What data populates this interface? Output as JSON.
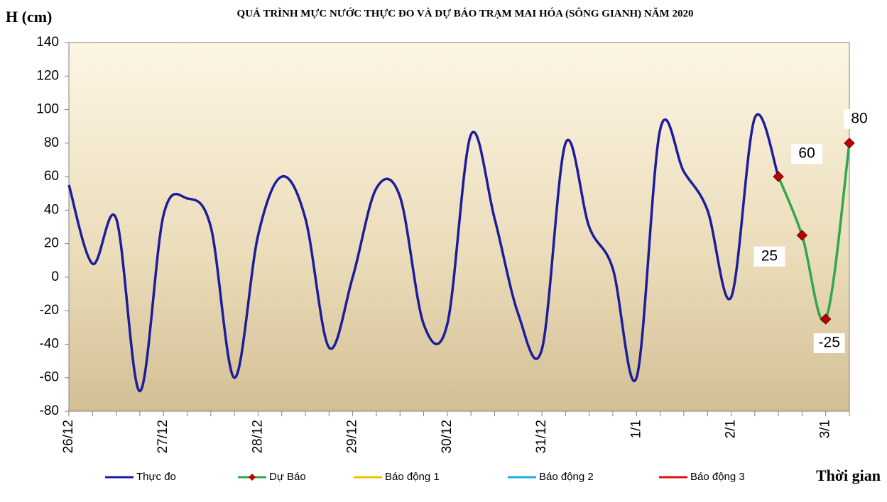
{
  "chart_data": {
    "type": "line",
    "title": "QUÁ TRÌNH MỰC NƯỚC THỰC ĐO VÀ DỰ BÁO TRẠM MAI HÓA (SÔNG GIANH) NĂM  2020",
    "y_label": "H (cm)",
    "x_label": "Thời gian",
    "categories": [
      "26/12",
      null,
      null,
      null,
      "27/12",
      null,
      null,
      null,
      "28/12",
      null,
      null,
      null,
      "29/12",
      null,
      null,
      null,
      "30/12",
      null,
      null,
      null,
      "31/12",
      null,
      null,
      null,
      "1/1",
      null,
      null,
      null,
      "2/1",
      null,
      null,
      null,
      "3/1",
      null
    ],
    "series": [
      {
        "name": "Thực đo",
        "color": "#1c1c9c",
        "values": [
          55,
          8,
          35,
          -68,
          37,
          47,
          30,
          -60,
          25,
          60,
          35,
          -42,
          0,
          53,
          48,
          -28,
          -28,
          85,
          35,
          -22,
          -43,
          80,
          30,
          5,
          -60,
          88,
          63,
          40,
          -12,
          95,
          60,
          null,
          null,
          null
        ]
      },
      {
        "name": "Dự Báo",
        "color": "#2ea84a",
        "marker_color": "#c00000",
        "values": [
          null,
          null,
          null,
          null,
          null,
          null,
          null,
          null,
          null,
          null,
          null,
          null,
          null,
          null,
          null,
          null,
          null,
          null,
          null,
          null,
          null,
          null,
          null,
          null,
          null,
          null,
          null,
          null,
          null,
          null,
          60,
          25,
          -25,
          80
        ]
      },
      {
        "name": "Báo động 1",
        "color": "#f2c200",
        "values": [
          null,
          null,
          null,
          null,
          null,
          null,
          null,
          null,
          null,
          null,
          null,
          null,
          null,
          null,
          null,
          null,
          null,
          null,
          null,
          null,
          null,
          null,
          null,
          null,
          null,
          null,
          null,
          null,
          null,
          null,
          null,
          null,
          null,
          null
        ]
      },
      {
        "name": "Báo động 2",
        "color": "#1aaee0",
        "values": [
          null,
          null,
          null,
          null,
          null,
          null,
          null,
          null,
          null,
          null,
          null,
          null,
          null,
          null,
          null,
          null,
          null,
          null,
          null,
          null,
          null,
          null,
          null,
          null,
          null,
          null,
          null,
          null,
          null,
          null,
          null,
          null,
          null,
          null
        ]
      },
      {
        "name": "Báo động 3",
        "color": "#e01010",
        "values": [
          null,
          null,
          null,
          null,
          null,
          null,
          null,
          null,
          null,
          null,
          null,
          null,
          null,
          null,
          null,
          null,
          null,
          null,
          null,
          null,
          null,
          null,
          null,
          null,
          null,
          null,
          null,
          null,
          null,
          null,
          null,
          null,
          null,
          null
        ]
      }
    ],
    "ylim": [
      -80,
      140
    ],
    "yticks": [
      -80,
      -60,
      -40,
      -20,
      0,
      20,
      40,
      60,
      80,
      100,
      120,
      140
    ]
  }
}
